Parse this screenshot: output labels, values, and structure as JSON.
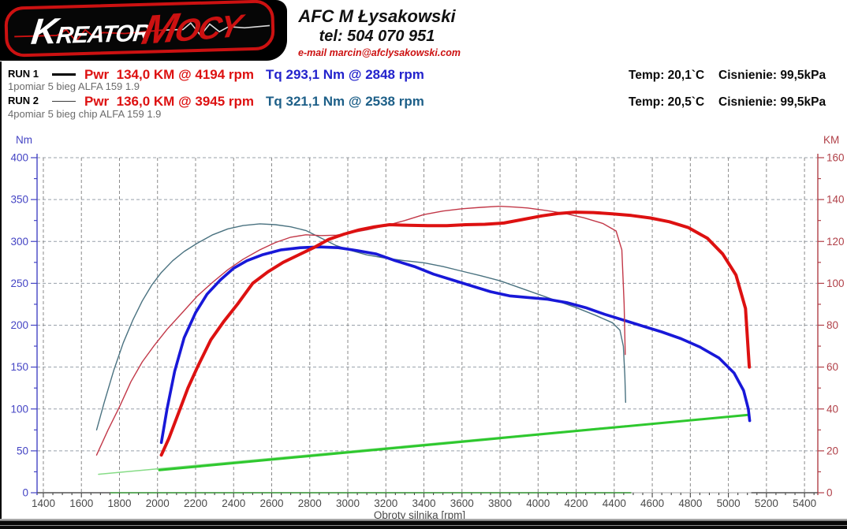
{
  "header": {
    "brand_text_1": "Kreator",
    "brand_text_2": "Mocy",
    "contact_name": "AFC M Łysakowski",
    "contact_tel": "tel: 504 070 951",
    "contact_email": "e-mail marcin@afclysakowski.com"
  },
  "colors": {
    "brand_red": "#cc1111",
    "email_red": "#cc1111",
    "power_red": "#dd1111",
    "torque_blue": "#2323cc",
    "run2_torque_teal_text": "#1d5f88",
    "axis_left_blue": "#4444c4",
    "axis_right_red": "#b04048"
  },
  "runs": [
    {
      "label": "RUN 1",
      "description": "1pomiar 5 bieg ALFA 159 1.9",
      "pwr_label": "Pwr",
      "pwr_value": "134,0 KM @ 4194 rpm",
      "tq_label": "Tq",
      "tq_value": "293,1 Nm @ 2848 rpm",
      "temp": "Temp: 20,1`C",
      "pressure": "Cisnienie: 99,5kPa",
      "line_style": "thick"
    },
    {
      "label": "RUN 2",
      "description": "4pomiar 5 bieg chip ALFA 159 1.9",
      "pwr_label": "Pwr",
      "pwr_value": "136,0 KM @ 3945 rpm",
      "tq_label": "Tq",
      "tq_value": "321,1 Nm @ 2538 rpm",
      "temp": "Temp: 20,5`C",
      "pressure": "Cisnienie: 99,5kPa",
      "line_style": "thin"
    }
  ],
  "chart_data": {
    "type": "line",
    "title": "",
    "xlabel": "Obroty silnika [rpm]",
    "grid": true,
    "x_axis": {
      "min": 1367,
      "max": 5470,
      "tick_min": 1400,
      "tick_max": 5400,
      "tick_step": 200,
      "minor_step": 50,
      "color": "#4a4a4a"
    },
    "left_axis": {
      "label": "Nm",
      "min": 0,
      "max": 400,
      "tick_step": 50,
      "minor_step": 25,
      "color": "#4444c4"
    },
    "right_axis": {
      "label": "KM",
      "min": 0,
      "max": 160,
      "tick_step": 20,
      "minor_step": 10,
      "color": "#b04048"
    },
    "baseline_segments": [
      {
        "from": 1367,
        "to": 1750,
        "color": "#555555"
      },
      {
        "from": 1750,
        "to": 4490,
        "color": "#2f8f2f"
      },
      {
        "from": 4490,
        "to": 5120,
        "color": "#c2c2c2"
      },
      {
        "from": 5120,
        "to": 5470,
        "color": "#555555"
      }
    ],
    "series": [
      {
        "name": "run2-speed",
        "axis": "left",
        "color": "#86dc86",
        "width": 1.5,
        "points": [
          [
            1690,
            22
          ],
          [
            4460,
            80
          ]
        ]
      },
      {
        "name": "run1-speed",
        "axis": "left",
        "color": "#2ec82e",
        "width": 3,
        "points": [
          [
            2010,
            27
          ],
          [
            5105,
            93
          ]
        ]
      },
      {
        "name": "run2-torque-nm",
        "axis": "left",
        "color": "#4a7280",
        "width": 1.4,
        "points": [
          [
            1680,
            75
          ],
          [
            1720,
            108
          ],
          [
            1770,
            146
          ],
          [
            1820,
            179
          ],
          [
            1870,
            206
          ],
          [
            1920,
            229
          ],
          [
            1970,
            248
          ],
          [
            2020,
            263
          ],
          [
            2080,
            277
          ],
          [
            2140,
            288
          ],
          [
            2210,
            298
          ],
          [
            2290,
            308
          ],
          [
            2370,
            315
          ],
          [
            2450,
            319
          ],
          [
            2538,
            321
          ],
          [
            2620,
            320
          ],
          [
            2700,
            317.5
          ],
          [
            2780,
            313
          ],
          [
            2860,
            304
          ],
          [
            2940,
            295
          ],
          [
            3020,
            289
          ],
          [
            3100,
            284
          ],
          [
            3200,
            280
          ],
          [
            3300,
            277
          ],
          [
            3400,
            274.5
          ],
          [
            3500,
            270
          ],
          [
            3600,
            264.5
          ],
          [
            3700,
            259
          ],
          [
            3800,
            253
          ],
          [
            3900,
            245
          ],
          [
            4000,
            237
          ],
          [
            4100,
            229
          ],
          [
            4200,
            221
          ],
          [
            4300,
            212
          ],
          [
            4390,
            203
          ],
          [
            4430,
            194
          ],
          [
            4448,
            175
          ],
          [
            4456,
            140
          ],
          [
            4460,
            108
          ]
        ]
      },
      {
        "name": "run1-torque-nm",
        "axis": "left",
        "color": "#1818d8",
        "width": 3.6,
        "points": [
          [
            2020,
            60
          ],
          [
            2050,
            100
          ],
          [
            2090,
            145
          ],
          [
            2140,
            185
          ],
          [
            2200,
            215
          ],
          [
            2260,
            237
          ],
          [
            2330,
            254
          ],
          [
            2400,
            268
          ],
          [
            2470,
            277
          ],
          [
            2550,
            284
          ],
          [
            2650,
            290
          ],
          [
            2750,
            292.5
          ],
          [
            2850,
            293.5
          ],
          [
            2950,
            292.5
          ],
          [
            3050,
            289
          ],
          [
            3150,
            285
          ],
          [
            3250,
            277
          ],
          [
            3350,
            270
          ],
          [
            3450,
            261
          ],
          [
            3550,
            254
          ],
          [
            3650,
            247
          ],
          [
            3750,
            240
          ],
          [
            3850,
            235
          ],
          [
            3950,
            233
          ],
          [
            4050,
            231
          ],
          [
            4150,
            227
          ],
          [
            4250,
            221
          ],
          [
            4350,
            213
          ],
          [
            4450,
            206
          ],
          [
            4550,
            199
          ],
          [
            4650,
            192
          ],
          [
            4750,
            184
          ],
          [
            4850,
            174
          ],
          [
            4950,
            161
          ],
          [
            5030,
            143
          ],
          [
            5080,
            122
          ],
          [
            5105,
            100
          ],
          [
            5112,
            86
          ]
        ]
      },
      {
        "name": "run2-power-km",
        "axis": "right",
        "color": "#c23848",
        "width": 1.4,
        "points": [
          [
            1680,
            18
          ],
          [
            1740,
            30
          ],
          [
            1800,
            41
          ],
          [
            1860,
            53
          ],
          [
            1920,
            62.5
          ],
          [
            1980,
            70
          ],
          [
            2050,
            78
          ],
          [
            2130,
            86
          ],
          [
            2210,
            94
          ],
          [
            2290,
            100.5
          ],
          [
            2370,
            106.5
          ],
          [
            2450,
            111.5
          ],
          [
            2538,
            116
          ],
          [
            2620,
            119.5
          ],
          [
            2700,
            122
          ],
          [
            2780,
            123.2
          ],
          [
            2860,
            122.8
          ],
          [
            2940,
            123
          ],
          [
            3020,
            124.2
          ],
          [
            3100,
            125.5
          ],
          [
            3200,
            127.5
          ],
          [
            3300,
            130
          ],
          [
            3400,
            132.8
          ],
          [
            3500,
            134.5
          ],
          [
            3600,
            135.6
          ],
          [
            3700,
            136.3
          ],
          [
            3800,
            136.8
          ],
          [
            3880,
            136.4
          ],
          [
            3945,
            136
          ],
          [
            4040,
            134.8
          ],
          [
            4140,
            133.4
          ],
          [
            4240,
            131.3
          ],
          [
            4340,
            128.6
          ],
          [
            4410,
            125
          ],
          [
            4440,
            116
          ],
          [
            4452,
            90
          ],
          [
            4458,
            66
          ]
        ]
      },
      {
        "name": "run1-power-km",
        "axis": "right",
        "color": "#dd1111",
        "width": 4,
        "points": [
          [
            2020,
            18
          ],
          [
            2060,
            26
          ],
          [
            2110,
            38
          ],
          [
            2160,
            50
          ],
          [
            2210,
            60
          ],
          [
            2280,
            73
          ],
          [
            2350,
            82
          ],
          [
            2420,
            90
          ],
          [
            2500,
            100
          ],
          [
            2580,
            105.5
          ],
          [
            2660,
            110
          ],
          [
            2740,
            113.5
          ],
          [
            2820,
            117
          ],
          [
            2900,
            121
          ],
          [
            2980,
            123.5
          ],
          [
            3060,
            125.5
          ],
          [
            3140,
            127
          ],
          [
            3220,
            128
          ],
          [
            3320,
            127.7
          ],
          [
            3420,
            127.5
          ],
          [
            3520,
            127.5
          ],
          [
            3620,
            128
          ],
          [
            3720,
            128.2
          ],
          [
            3820,
            128.8
          ],
          [
            3920,
            130.5
          ],
          [
            4020,
            132.2
          ],
          [
            4110,
            133.4
          ],
          [
            4194,
            134
          ],
          [
            4290,
            133.8
          ],
          [
            4390,
            133.2
          ],
          [
            4490,
            132.4
          ],
          [
            4590,
            131.2
          ],
          [
            4690,
            129.4
          ],
          [
            4790,
            126.6
          ],
          [
            4890,
            121.5
          ],
          [
            4970,
            114
          ],
          [
            5040,
            104
          ],
          [
            5090,
            88
          ],
          [
            5110,
            60
          ]
        ]
      }
    ]
  }
}
